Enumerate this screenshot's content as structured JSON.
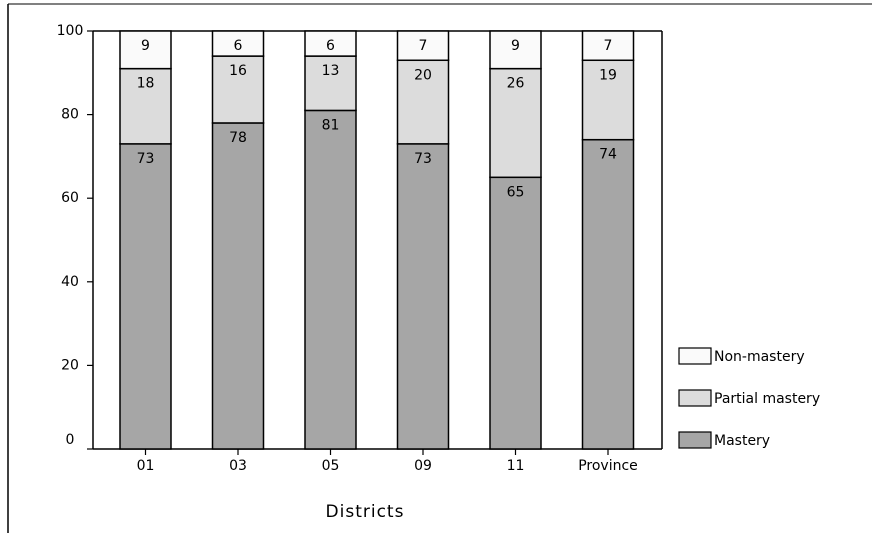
{
  "chart_data": {
    "type": "bar",
    "stacked": true,
    "categories": [
      "01",
      "03",
      "05",
      "09",
      "11",
      "Province"
    ],
    "series": [
      {
        "name": "Mastery",
        "values": [
          73,
          78,
          81,
          73,
          65,
          74
        ],
        "color": "#a6a6a6"
      },
      {
        "name": "Partial mastery",
        "values": [
          18,
          16,
          13,
          20,
          26,
          19
        ],
        "color": "#dcdcdc"
      },
      {
        "name": "Non-mastery",
        "values": [
          9,
          6,
          6,
          7,
          9,
          7
        ],
        "color": "#fafafa"
      }
    ],
    "legend_order": [
      "Non-mastery",
      "Partial mastery",
      "Mastery"
    ],
    "xlabel": "Districts",
    "ylabel": "",
    "ylim": [
      0,
      100
    ],
    "yticks": [
      0,
      20,
      40,
      60,
      80,
      100
    ],
    "grid": false,
    "legend_position": "right"
  }
}
